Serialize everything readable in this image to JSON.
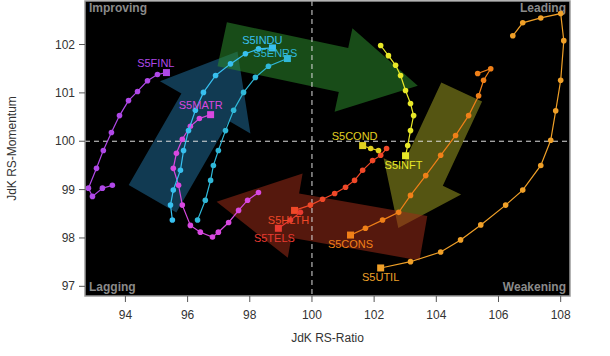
{
  "chart_data": {
    "type": "scatter",
    "line_style": "solid",
    "marker": "circle",
    "xlabel": "JdK RS-Ratio",
    "ylabel": "JdK RS-Momentum",
    "xlim": [
      92.7,
      108.3
    ],
    "ylim": [
      96.8,
      102.9
    ],
    "xticks": [
      94,
      96,
      98,
      100,
      102,
      104,
      106,
      108
    ],
    "yticks": [
      97,
      98,
      99,
      100,
      101,
      102
    ],
    "grid": false,
    "reference": {
      "x": 100,
      "y": 100
    },
    "quadrants": [
      "Improving",
      "Leading",
      "Weakening",
      "Lagging"
    ],
    "series": [
      {
        "name": "S5FINL",
        "color": "#b048e8",
        "x": [
          93.58,
          93.26,
          92.94,
          92.81,
          93.07,
          93.29,
          93.55,
          93.81,
          94.1,
          94.39,
          94.71,
          95.03,
          95.32
        ],
        "values": [
          99.09,
          99.03,
          98.86,
          99.03,
          99.44,
          99.81,
          100.18,
          100.53,
          100.84,
          101.03,
          101.25,
          101.38,
          101.42
        ]
      },
      {
        "name": "S5MATR",
        "color": "#d848e0",
        "x": [
          98.28,
          97.93,
          97.64,
          97.32,
          96.99,
          96.8,
          96.41,
          96.09,
          95.83,
          95.71,
          95.54,
          95.64,
          95.83,
          96.09,
          96.38,
          96.74
        ],
        "values": [
          98.94,
          98.78,
          98.57,
          98.32,
          98.12,
          98.02,
          98.12,
          98.26,
          98.68,
          99.09,
          99.44,
          99.75,
          100.04,
          100.31,
          100.47,
          100.55
        ]
      },
      {
        "name": "S5INDU",
        "color": "#38c0f0",
        "x": [
          95.51,
          95.45,
          95.54,
          95.77,
          95.87,
          96.03,
          96.25,
          96.51,
          96.9,
          97.38,
          97.86,
          98.28,
          98.73
        ],
        "values": [
          98.37,
          98.68,
          98.99,
          99.4,
          99.81,
          100.22,
          100.64,
          101.01,
          101.36,
          101.6,
          101.81,
          101.91,
          101.93
        ]
      },
      {
        "name": "S5ENRS",
        "color": "#30b8d8",
        "x": [
          96.32,
          96.57,
          96.74,
          96.83,
          96.99,
          97.22,
          97.48,
          97.8,
          98.18,
          98.6,
          99.21
        ],
        "values": [
          98.37,
          98.78,
          99.19,
          99.5,
          99.81,
          100.22,
          100.64,
          101.01,
          101.32,
          101.55,
          101.71
        ]
      },
      {
        "name": "S5HLTH",
        "color": "#f04828",
        "x": [
          102.4,
          102.21,
          101.95,
          101.63,
          101.37,
          101.08,
          100.73,
          100.34,
          99.95,
          99.44
        ],
        "values": [
          99.85,
          99.71,
          99.6,
          99.4,
          99.19,
          99.05,
          98.92,
          98.8,
          98.68,
          98.57
        ]
      },
      {
        "name": "S5TELS",
        "color": "#e83a30",
        "x": [
          99.63,
          99.31,
          98.92
        ],
        "values": [
          98.53,
          98.37,
          98.2
        ]
      },
      {
        "name": "S5COND",
        "color": "#e0d020",
        "x": [
          102.14,
          101.89,
          101.63
        ],
        "values": [
          99.81,
          99.85,
          99.91
        ]
      },
      {
        "name": "S5INFT",
        "color": "#e8e828",
        "x": [
          102.21,
          102.46,
          102.69,
          102.85,
          103.01,
          103.17,
          103.27,
          103.17,
          103.08,
          103.01
        ],
        "values": [
          101.98,
          101.77,
          101.57,
          101.36,
          101.05,
          100.78,
          100.53,
          100.22,
          99.91,
          99.7
        ]
      },
      {
        "name": "S5CONS",
        "color": "#f08018",
        "x": [
          105.33,
          105.75,
          105.52,
          105.36,
          105.04,
          104.62,
          104.14,
          103.66,
          103.17,
          102.79,
          102.27,
          101.72,
          101.24
        ],
        "values": [
          101.4,
          101.5,
          101.26,
          100.94,
          100.53,
          100.12,
          99.71,
          99.29,
          98.88,
          98.53,
          98.37,
          98.2,
          98.06
        ]
      },
      {
        "name": "S5UTIL",
        "color": "#f0a028",
        "x": [
          106.46,
          106.78,
          107.36,
          108.0,
          108.1,
          108.0,
          107.84,
          107.68,
          107.36,
          106.78,
          106.23,
          105.43,
          104.78,
          104.14,
          103.17,
          102.21
        ],
        "values": [
          102.18,
          102.45,
          102.55,
          102.64,
          102.08,
          101.26,
          100.63,
          100.02,
          99.5,
          98.99,
          98.68,
          98.27,
          97.96,
          97.71,
          97.51,
          97.38
        ]
      }
    ]
  }
}
